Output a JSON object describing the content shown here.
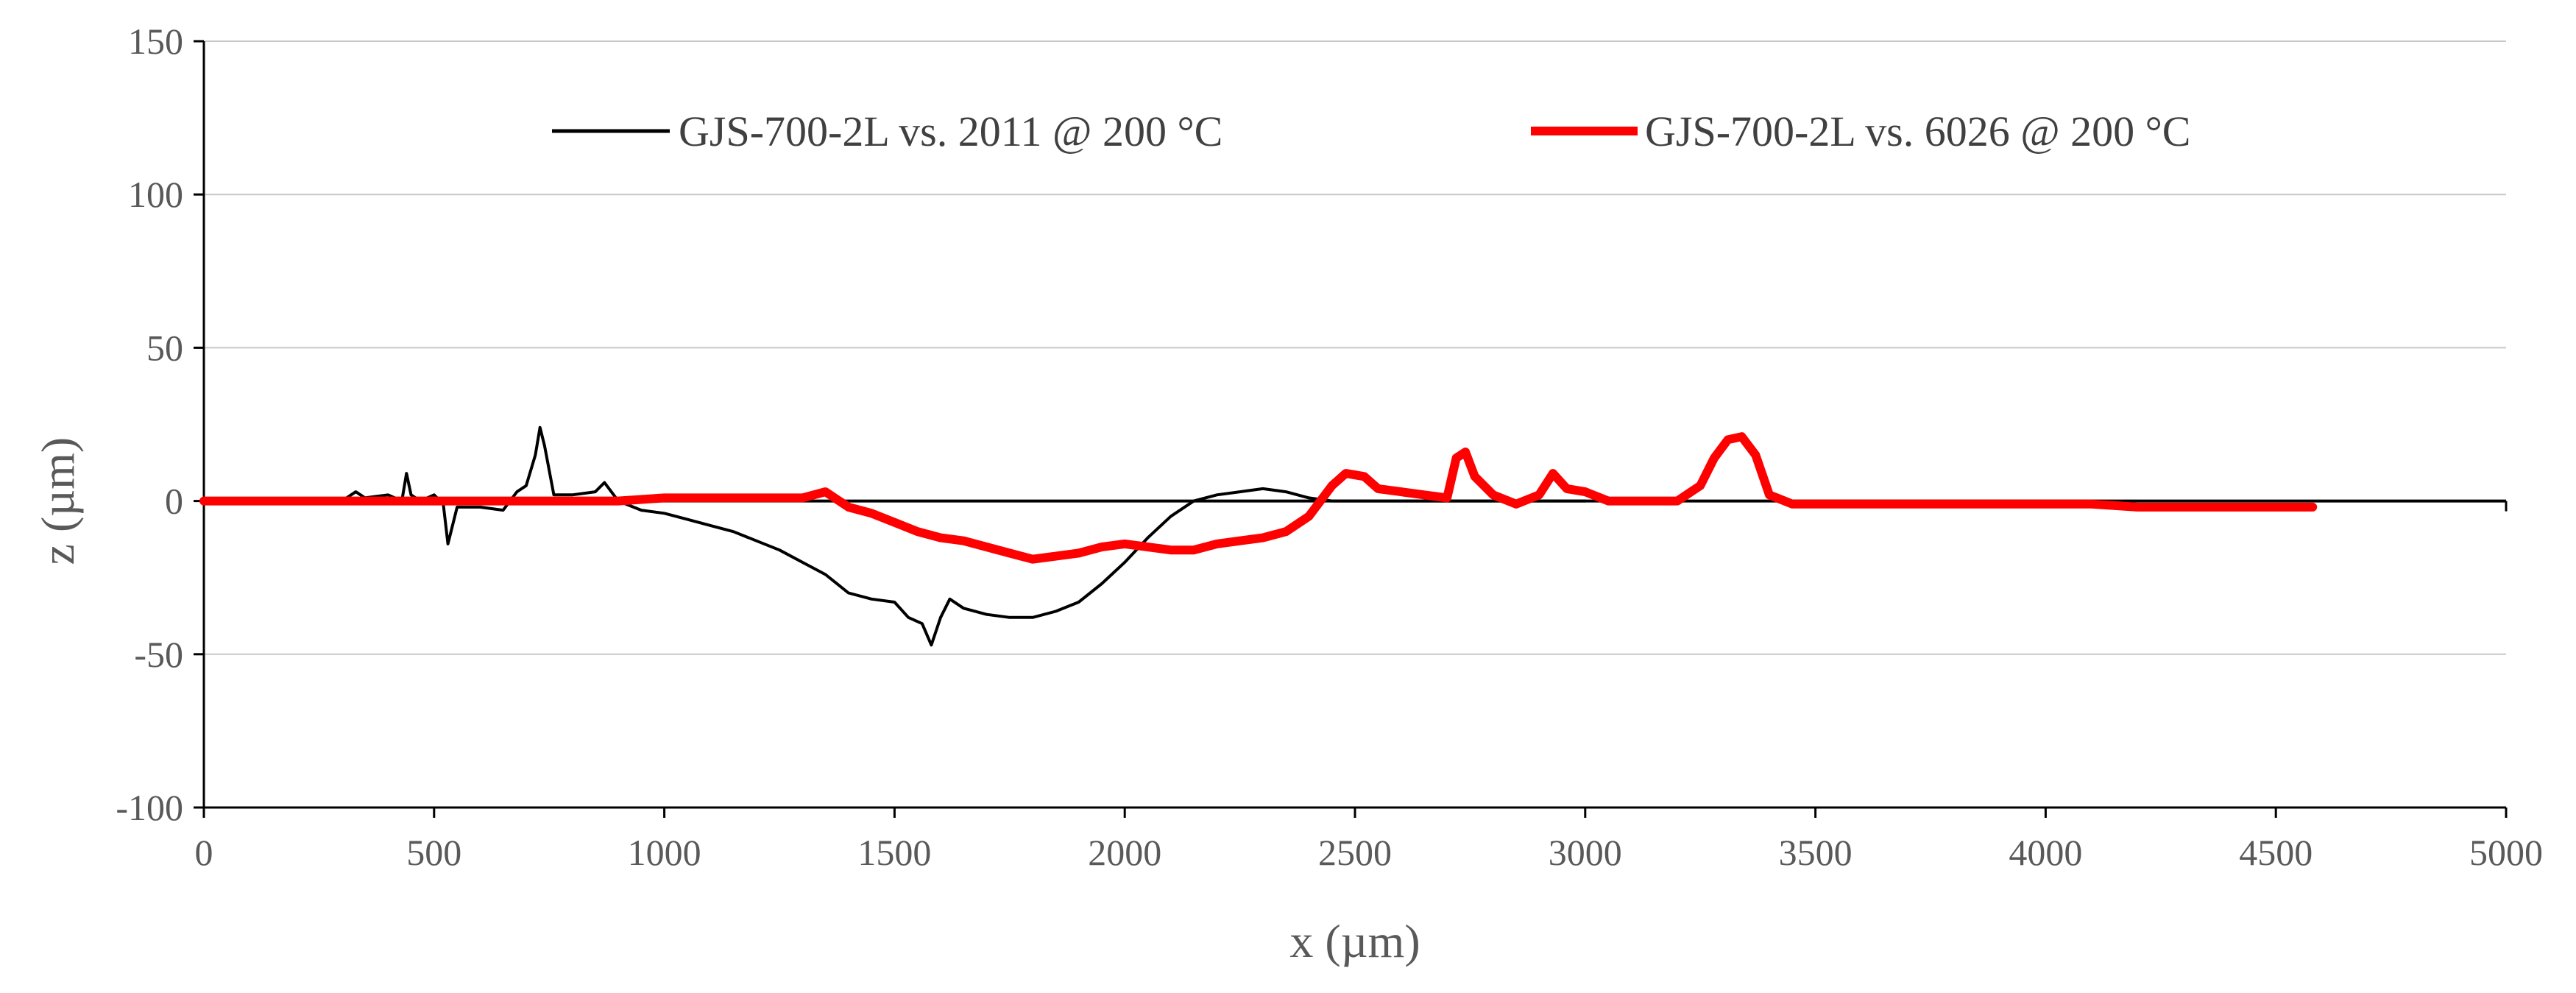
{
  "chart_data": {
    "type": "line",
    "title": "",
    "xlabel": "x (µm)",
    "ylabel": "z (µm)",
    "xlim": [
      0,
      5000
    ],
    "ylim": [
      -100,
      150
    ],
    "x_ticks": [
      "0",
      "500",
      "1000",
      "1500",
      "2000",
      "2500",
      "3000",
      "3500",
      "4000",
      "4500",
      "5000"
    ],
    "y_ticks": [
      "150",
      "100",
      "50",
      "0",
      "-50",
      "-100"
    ],
    "grid": "horizontal",
    "legend_position": "top",
    "series": [
      {
        "name": "GJS-700-2L vs. 2011 @ 200 °C",
        "color": "#000000",
        "x": [
          0,
          100,
          200,
          300,
          330,
          350,
          400,
          430,
          440,
          450,
          470,
          500,
          520,
          530,
          550,
          600,
          650,
          680,
          700,
          720,
          730,
          740,
          760,
          800,
          850,
          870,
          900,
          950,
          1000,
          1050,
          1100,
          1150,
          1200,
          1250,
          1300,
          1350,
          1400,
          1450,
          1500,
          1530,
          1560,
          1580,
          1600,
          1620,
          1650,
          1700,
          1750,
          1800,
          1850,
          1900,
          1950,
          2000,
          2050,
          2100,
          2150,
          2200,
          2250,
          2300,
          2350,
          2400,
          2450,
          2500,
          2600,
          2700,
          2800,
          2900,
          3000
        ],
        "y": [
          0,
          0,
          0,
          0,
          3,
          1,
          2,
          0,
          9,
          2,
          0,
          2,
          -1,
          -14,
          -2,
          -2,
          -3,
          3,
          5,
          15,
          24,
          18,
          2,
          2,
          3,
          6,
          0,
          -3,
          -4,
          -6,
          -8,
          -10,
          -13,
          -16,
          -20,
          -24,
          -30,
          -32,
          -33,
          -38,
          -40,
          -47,
          -38,
          -32,
          -35,
          -37,
          -38,
          -38,
          -36,
          -33,
          -27,
          -20,
          -12,
          -5,
          0,
          2,
          3,
          4,
          3,
          1,
          0,
          0,
          0,
          0,
          0,
          0,
          0
        ]
      },
      {
        "name": "GJS-700-2L vs. 6026 @ 200 °C",
        "color": "#ff0000",
        "x": [
          0,
          100,
          200,
          300,
          400,
          500,
          600,
          700,
          800,
          900,
          1000,
          1100,
          1200,
          1300,
          1350,
          1400,
          1450,
          1500,
          1550,
          1600,
          1650,
          1700,
          1750,
          1800,
          1850,
          1900,
          1950,
          2000,
          2050,
          2100,
          2150,
          2200,
          2250,
          2300,
          2350,
          2400,
          2450,
          2480,
          2520,
          2550,
          2600,
          2650,
          2700,
          2720,
          2740,
          2760,
          2800,
          2850,
          2900,
          2930,
          2960,
          3000,
          3050,
          3100,
          3150,
          3200,
          3250,
          3280,
          3310,
          3340,
          3370,
          3400,
          3450,
          3500,
          3600,
          3700,
          3800,
          3900,
          4000,
          4100,
          4200,
          4300,
          4400,
          4500,
          4580
        ],
        "y": [
          0,
          0,
          0,
          0,
          0,
          0,
          0,
          0,
          0,
          0,
          1,
          1,
          1,
          1,
          3,
          -2,
          -4,
          -7,
          -10,
          -12,
          -13,
          -15,
          -17,
          -19,
          -18,
          -17,
          -15,
          -14,
          -15,
          -16,
          -16,
          -14,
          -13,
          -12,
          -10,
          -5,
          5,
          9,
          8,
          4,
          3,
          2,
          1,
          14,
          16,
          8,
          2,
          -1,
          2,
          9,
          4,
          3,
          0,
          0,
          0,
          0,
          5,
          14,
          20,
          21,
          15,
          2,
          -1,
          -1,
          -1,
          -1,
          -1,
          -1,
          -1,
          -1,
          -2,
          -2,
          -2,
          -2,
          -2
        ]
      }
    ]
  }
}
